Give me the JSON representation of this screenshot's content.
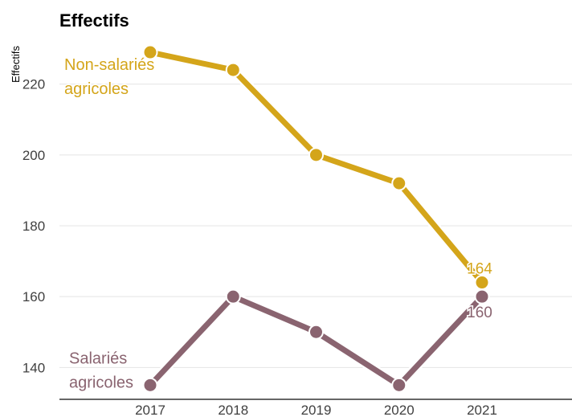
{
  "chart_data": {
    "type": "line",
    "title": "Effectifs",
    "ylabel": "Effectifs",
    "xlabel": "",
    "categories": [
      "2017",
      "2018",
      "2019",
      "2020",
      "2021"
    ],
    "ylim": [
      131,
      234
    ],
    "yticks": [
      140,
      160,
      180,
      200,
      220
    ],
    "grid": "horizontal",
    "legend": "direct labels",
    "series": [
      {
        "name": "Non-salariés agricoles",
        "name_lines": [
          "Non-salariés",
          "agricoles"
        ],
        "color": "#d4a51a",
        "values": [
          229,
          224,
          200,
          192,
          164
        ],
        "end_label": "164"
      },
      {
        "name": "Salariés agricoles",
        "name_lines": [
          "Salariés",
          "agricoles"
        ],
        "color": "#8a6470",
        "values": [
          135,
          160,
          150,
          135,
          160
        ],
        "end_label": "160"
      }
    ]
  }
}
